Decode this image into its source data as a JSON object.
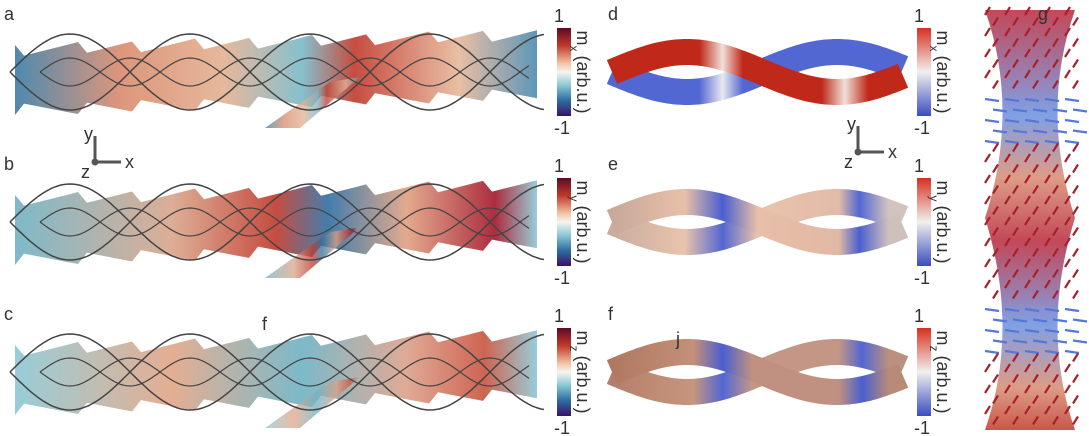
{
  "panels": [
    {
      "label": "a"
    },
    {
      "label": "b"
    },
    {
      "label": "c"
    },
    {
      "label": "d"
    },
    {
      "label": "e"
    },
    {
      "label": "f"
    },
    {
      "label": "g"
    }
  ],
  "colorbars": [
    {
      "max": 1,
      "min": -1,
      "symbol": "m",
      "component": "x",
      "unit": "(arb.u.)"
    },
    {
      "max": 1,
      "min": -1,
      "symbol": "m",
      "component": "y",
      "unit": "(arb.u.)"
    },
    {
      "max": 1,
      "min": -1,
      "symbol": "m",
      "component": "z",
      "unit": "(arb.u.)"
    },
    {
      "max": 1,
      "min": -1,
      "symbol": "m",
      "component": "x",
      "unit": "(arb.u.)"
    },
    {
      "max": 1,
      "min": -1,
      "symbol": "m",
      "component": "y",
      "unit": "(arb.u.)"
    },
    {
      "max": 1,
      "min": -1,
      "symbol": "m",
      "component": "z",
      "unit": "(arb.u.)"
    }
  ],
  "axes": [
    {
      "y": "y",
      "x": "x",
      "z": "z"
    },
    {
      "y": "y",
      "x": "x",
      "z": "z"
    }
  ],
  "annotations": [
    {
      "text": "f"
    },
    {
      "text": "j"
    }
  ]
}
